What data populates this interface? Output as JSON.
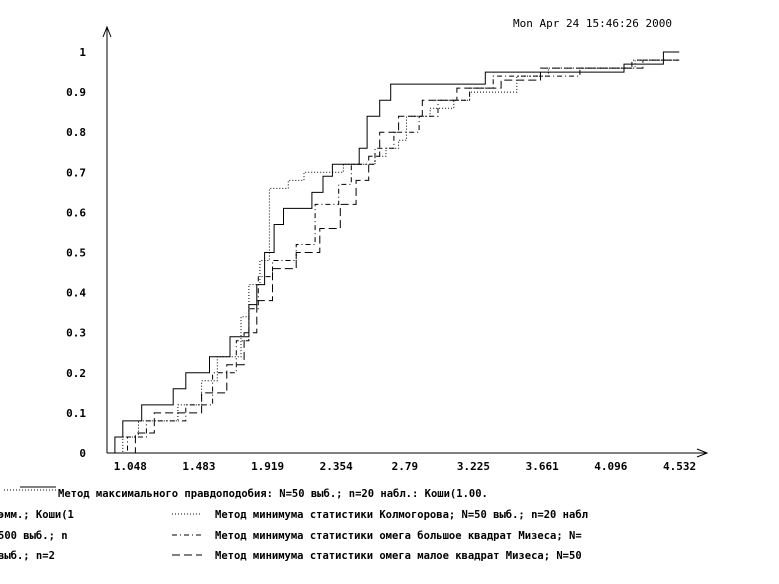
{
  "timestamp": "Mon Apr 24 15:46:26 2000",
  "chart_data": {
    "type": "line",
    "step": true,
    "xlim": [
      0.9,
      4.7
    ],
    "ylim": [
      0,
      1.05
    ],
    "x_ticks": [
      "1.048",
      "1.483",
      "1.919",
      "2.354",
      "2.79",
      "3.225",
      "3.661",
      "4.096",
      "4.532"
    ],
    "y_ticks": [
      "0",
      "0.1",
      "0.2",
      "0.3",
      "0.4",
      "0.5",
      "0.6",
      "0.7",
      "0.8",
      "0.9",
      "1"
    ],
    "legend_placement": "bottom",
    "series": [
      {
        "style": "solid",
        "values": [
          [
            0.93,
            0
          ],
          [
            0.95,
            0.04
          ],
          [
            1.0,
            0.08
          ],
          [
            1.12,
            0.12
          ],
          [
            1.32,
            0.16
          ],
          [
            1.4,
            0.2
          ],
          [
            1.55,
            0.24
          ],
          [
            1.68,
            0.29
          ],
          [
            1.8,
            0.37
          ],
          [
            1.85,
            0.42
          ],
          [
            1.9,
            0.5
          ],
          [
            1.96,
            0.57
          ],
          [
            2.02,
            0.61
          ],
          [
            2.2,
            0.65
          ],
          [
            2.27,
            0.69
          ],
          [
            2.33,
            0.72
          ],
          [
            2.5,
            0.76
          ],
          [
            2.55,
            0.84
          ],
          [
            2.63,
            0.88
          ],
          [
            2.7,
            0.92
          ],
          [
            3.3,
            0.95
          ],
          [
            4.18,
            0.97
          ],
          [
            4.43,
            1.0
          ],
          [
            4.53,
            1.0
          ]
        ]
      },
      {
        "style": "dotted",
        "values": [
          [
            0.95,
            0
          ],
          [
            1.0,
            0.04
          ],
          [
            1.1,
            0.08
          ],
          [
            1.35,
            0.12
          ],
          [
            1.5,
            0.18
          ],
          [
            1.6,
            0.24
          ],
          [
            1.75,
            0.34
          ],
          [
            1.8,
            0.42
          ],
          [
            1.87,
            0.48
          ],
          [
            1.93,
            0.66
          ],
          [
            2.05,
            0.68
          ],
          [
            2.15,
            0.7
          ],
          [
            2.4,
            0.72
          ],
          [
            2.6,
            0.74
          ],
          [
            2.67,
            0.76
          ],
          [
            2.75,
            0.78
          ],
          [
            2.8,
            0.84
          ],
          [
            2.95,
            0.86
          ],
          [
            3.1,
            0.88
          ],
          [
            3.2,
            0.9
          ],
          [
            3.5,
            0.94
          ],
          [
            3.7,
            0.96
          ],
          [
            4.25,
            0.98
          ],
          [
            4.53,
            0.98
          ]
        ]
      },
      {
        "style": "dash-dot",
        "values": [
          [
            0.97,
            0
          ],
          [
            1.03,
            0.04
          ],
          [
            1.15,
            0.08
          ],
          [
            1.4,
            0.12
          ],
          [
            1.57,
            0.2
          ],
          [
            1.72,
            0.28
          ],
          [
            1.8,
            0.36
          ],
          [
            1.86,
            0.44
          ],
          [
            1.95,
            0.48
          ],
          [
            2.1,
            0.52
          ],
          [
            2.22,
            0.62
          ],
          [
            2.37,
            0.67
          ],
          [
            2.45,
            0.72
          ],
          [
            2.6,
            0.76
          ],
          [
            2.72,
            0.8
          ],
          [
            2.88,
            0.84
          ],
          [
            3.0,
            0.88
          ],
          [
            3.2,
            0.91
          ],
          [
            3.35,
            0.94
          ],
          [
            3.9,
            0.96
          ],
          [
            4.23,
            0.98
          ],
          [
            4.53,
            0.98
          ]
        ]
      },
      {
        "style": "dashed",
        "values": [
          [
            0.99,
            0
          ],
          [
            1.08,
            0.05
          ],
          [
            1.2,
            0.1
          ],
          [
            1.5,
            0.15
          ],
          [
            1.66,
            0.22
          ],
          [
            1.77,
            0.3
          ],
          [
            1.85,
            0.38
          ],
          [
            1.95,
            0.46
          ],
          [
            2.1,
            0.5
          ],
          [
            2.25,
            0.56
          ],
          [
            2.38,
            0.62
          ],
          [
            2.48,
            0.68
          ],
          [
            2.56,
            0.74
          ],
          [
            2.63,
            0.8
          ],
          [
            2.75,
            0.84
          ],
          [
            2.9,
            0.88
          ],
          [
            3.12,
            0.91
          ],
          [
            3.4,
            0.93
          ],
          [
            3.65,
            0.96
          ],
          [
            4.3,
            0.98
          ],
          [
            4.53,
            0.98
          ]
        ]
      }
    ],
    "legend_left": [
      "Метод максимального правдоподобия: N=50 выб.; n=20 набл.: Коши(1.00.",
      "эмм.; Коши(1",
      "500 выб.; n",
      "выб.; n=2"
    ],
    "legend": [
      {
        "style": "dotted",
        "text": "Метод минимума статистики Колмогорова; N=50 выб.; n=20 набл"
      },
      {
        "style": "dash-dot",
        "text": "Метод минимума статистики омега большое квадрат Мизеса; N="
      },
      {
        "style": "dashed",
        "text": "Метод минимума статистики омега малое квадрат Мизеса; N=50"
      }
    ]
  }
}
